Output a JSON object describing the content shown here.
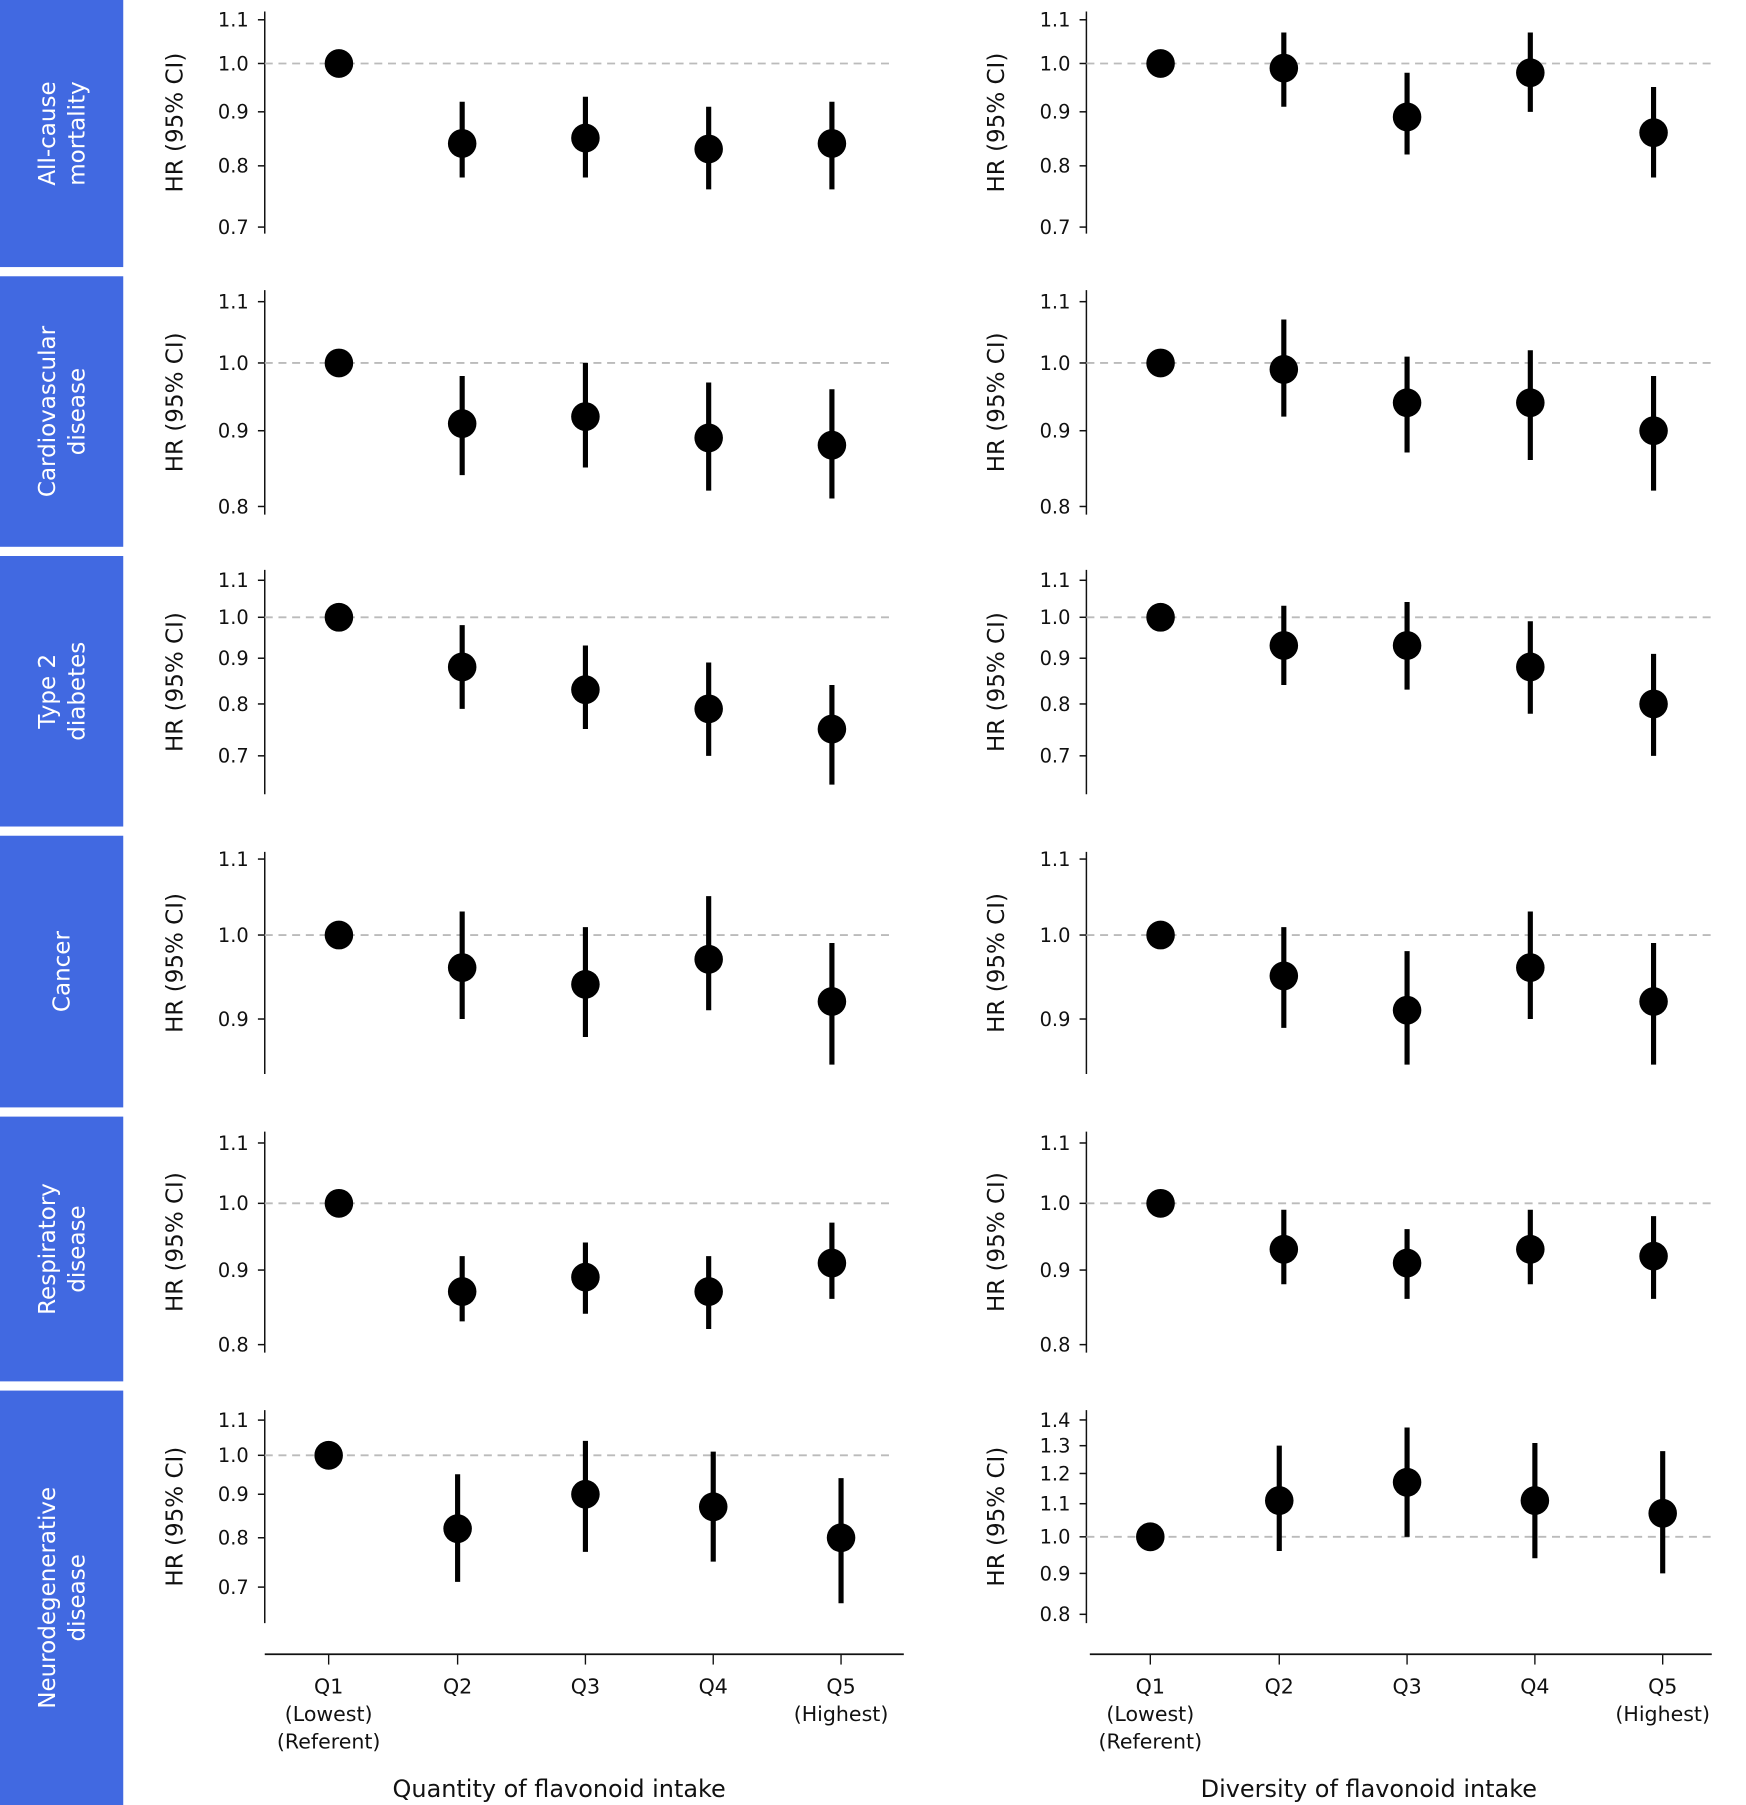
{
  "chart_data": {
    "type": "scatter",
    "subtype": "forest-plot-with-error-bars",
    "y_scale": "log",
    "grid": false,
    "reference_line": {
      "y": 1.0,
      "style": "dashed",
      "color": "#bbbbbb"
    },
    "colors": {
      "row_label_band": "#4169e1",
      "row_label_text": "#ffffff",
      "points": "#000000"
    },
    "ylabel": "HR (95% CI)",
    "categories": [
      "Q1",
      "Q2",
      "Q3",
      "Q4",
      "Q5"
    ],
    "category_sublabels": [
      [
        "(Lowest)",
        "(Referent)"
      ],
      [],
      [],
      [],
      [
        "(Highest)"
      ]
    ],
    "column_titles": [
      "Quantity of flavonoid intake",
      "Diversity of flavonoid intake"
    ],
    "rows": [
      {
        "label": [
          "All-cause",
          "mortality"
        ],
        "panels": [
          {
            "ylim": [
              0.69,
              1.12
            ],
            "yticks": [
              "1.1",
              "1.0",
              "0.9",
              "0.8",
              "0.7"
            ],
            "hr": [
              1.0,
              0.84,
              0.85,
              0.83,
              0.84
            ],
            "lo": [
              1.0,
              0.78,
              0.78,
              0.76,
              0.76
            ],
            "hi": [
              1.0,
              0.92,
              0.93,
              0.91,
              0.92
            ]
          },
          {
            "ylim": [
              0.69,
              1.12
            ],
            "yticks": [
              "1.1",
              "1.0",
              "0.9",
              "0.8",
              "0.7"
            ],
            "hr": [
              1.0,
              0.99,
              0.89,
              0.98,
              0.86
            ],
            "lo": [
              1.0,
              0.91,
              0.82,
              0.9,
              0.78
            ],
            "hi": [
              1.0,
              1.07,
              0.98,
              1.07,
              0.95
            ]
          }
        ]
      },
      {
        "label": [
          "Cardiovascular",
          "disease"
        ],
        "panels": [
          {
            "ylim": [
              0.79,
              1.12
            ],
            "yticks": [
              "1.1",
              "1.0",
              "0.9",
              "0.8"
            ],
            "hr": [
              1.0,
              0.91,
              0.92,
              0.89,
              0.88
            ],
            "lo": [
              1.0,
              0.84,
              0.85,
              0.82,
              0.81
            ],
            "hi": [
              1.0,
              0.98,
              1.0,
              0.97,
              0.96
            ]
          },
          {
            "ylim": [
              0.79,
              1.12
            ],
            "yticks": [
              "1.1",
              "1.0",
              "0.9",
              "0.8"
            ],
            "hr": [
              1.0,
              0.99,
              0.94,
              0.94,
              0.9
            ],
            "lo": [
              1.0,
              0.92,
              0.87,
              0.86,
              0.82
            ],
            "hi": [
              1.0,
              1.07,
              1.01,
              1.02,
              0.98
            ]
          }
        ]
      },
      {
        "label": [
          "Type 2",
          "diabetes"
        ],
        "panels": [
          {
            "ylim": [
              0.634,
              1.13
            ],
            "yticks": [
              "1.1",
              "1.0",
              "0.9",
              "0.8",
              "0.7"
            ],
            "hr": [
              1.0,
              0.88,
              0.83,
              0.79,
              0.75
            ],
            "lo": [
              1.0,
              0.79,
              0.75,
              0.7,
              0.65
            ],
            "hi": [
              1.0,
              0.98,
              0.93,
              0.89,
              0.84
            ]
          },
          {
            "ylim": [
              0.634,
              1.13
            ],
            "yticks": [
              "1.1",
              "1.0",
              "0.9",
              "0.8",
              "0.7"
            ],
            "hr": [
              1.0,
              0.93,
              0.93,
              0.88,
              0.8
            ],
            "lo": [
              1.0,
              0.84,
              0.83,
              0.78,
              0.7
            ],
            "hi": [
              1.0,
              1.03,
              1.04,
              0.99,
              0.91
            ]
          }
        ]
      },
      {
        "label": [
          "Cancer"
        ],
        "panels": [
          {
            "ylim": [
              0.84,
              1.11
            ],
            "yticks": [
              "1.1",
              "1.0",
              "0.9"
            ],
            "hr": [
              1.0,
              0.96,
              0.94,
              0.97,
              0.92
            ],
            "lo": [
              1.0,
              0.9,
              0.88,
              0.91,
              0.85
            ],
            "hi": [
              1.0,
              1.03,
              1.01,
              1.05,
              0.99
            ]
          },
          {
            "ylim": [
              0.84,
              1.11
            ],
            "yticks": [
              "1.1",
              "1.0",
              "0.9"
            ],
            "hr": [
              1.0,
              0.95,
              0.91,
              0.96,
              0.92
            ],
            "lo": [
              1.0,
              0.89,
              0.85,
              0.9,
              0.85
            ],
            "hi": [
              1.0,
              1.01,
              0.98,
              1.03,
              0.99
            ]
          }
        ]
      },
      {
        "label": [
          "Respiratory",
          "disease"
        ],
        "panels": [
          {
            "ylim": [
              0.79,
              1.12
            ],
            "yticks": [
              "1.1",
              "1.0",
              "0.9",
              "0.8"
            ],
            "hr": [
              1.0,
              0.87,
              0.89,
              0.87,
              0.91
            ],
            "lo": [
              1.0,
              0.83,
              0.84,
              0.82,
              0.86
            ],
            "hi": [
              1.0,
              0.92,
              0.94,
              0.92,
              0.97
            ]
          },
          {
            "ylim": [
              0.79,
              1.12
            ],
            "yticks": [
              "1.1",
              "1.0",
              "0.9",
              "0.8"
            ],
            "hr": [
              1.0,
              0.93,
              0.91,
              0.93,
              0.92
            ],
            "lo": [
              1.0,
              0.88,
              0.86,
              0.88,
              0.86
            ],
            "hi": [
              1.0,
              0.99,
              0.96,
              0.99,
              0.98
            ]
          }
        ]
      },
      {
        "label": [
          "Neurodegenerative",
          "disease"
        ],
        "panels": [
          {
            "ylim": [
              0.635,
              1.13
            ],
            "yticks": [
              "1.1",
              "1.0",
              "0.9",
              "0.8",
              "0.7"
            ],
            "hr": [
              1.0,
              0.82,
              0.9,
              0.87,
              0.8
            ],
            "lo": [
              1.0,
              0.71,
              0.77,
              0.75,
              0.67
            ],
            "hi": [
              1.0,
              0.95,
              1.04,
              1.01,
              0.94
            ]
          },
          {
            "ylim": [
              0.78,
              1.44
            ],
            "yticks": [
              "1.4",
              "1.3",
              "1.2",
              "1.1",
              "1.0",
              "0.9",
              "0.8"
            ],
            "hr": [
              1.0,
              1.11,
              1.17,
              1.11,
              1.07
            ],
            "lo": [
              1.0,
              0.96,
              1.0,
              0.94,
              0.9
            ],
            "hi": [
              1.0,
              1.3,
              1.37,
              1.31,
              1.28
            ]
          }
        ]
      }
    ]
  }
}
